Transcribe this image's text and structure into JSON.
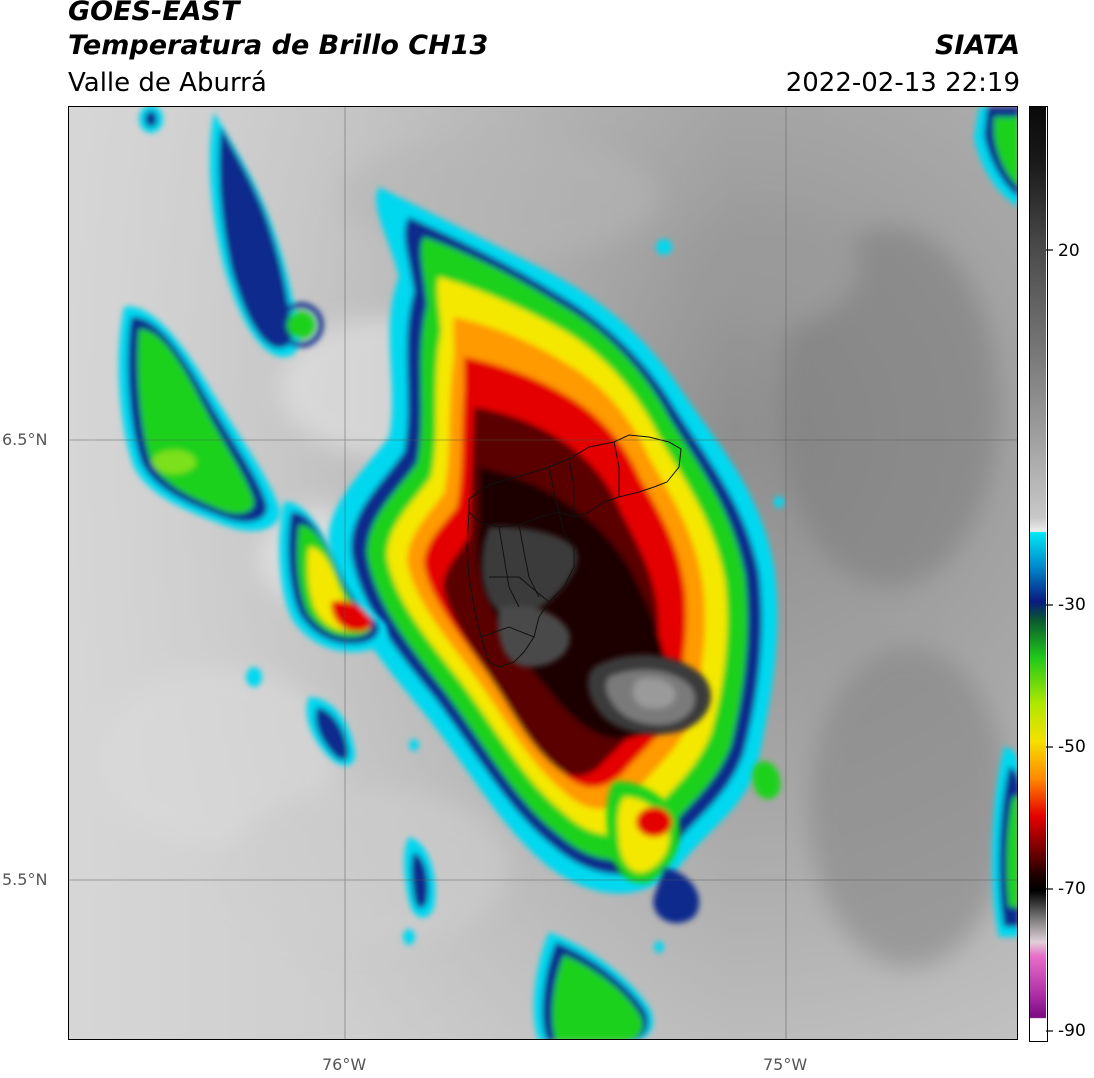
{
  "header": {
    "satellite": "GOES-EAST",
    "product": "Temperatura de Brillo CH13",
    "region": "Valle de Aburrá",
    "agency": "SIATA",
    "timestamp": "2022-02-13 22:19"
  },
  "map": {
    "lat_labels": [
      "6.5°N",
      "5.5°N"
    ],
    "lon_labels": [
      "76°W",
      "75°W"
    ]
  },
  "colorbar": {
    "ticks": [
      "20",
      "-30",
      "-50",
      "-70",
      "-90"
    ],
    "range": [
      -92,
      36
    ],
    "colors": {
      "warm_gray_light": "#f2f2f2",
      "warm_gray_dark": "#8c8c8c",
      "cyan": "#00d8f0",
      "blue": "#0a2a8c",
      "green": "#1fd11a",
      "yellow": "#f5e800",
      "orange": "#ff9a00",
      "red": "#e50000",
      "dark_red": "#3a0000",
      "black": "#0a0a0a",
      "cold_gray": "#a0a0a0",
      "magenta": "#d45ac8",
      "purple": "#8a1a8a"
    }
  }
}
